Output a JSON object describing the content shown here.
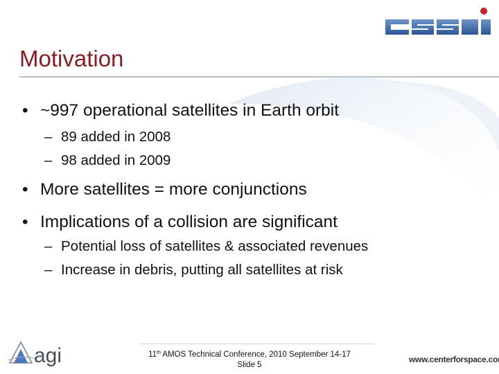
{
  "slide": {
    "title": "Motivation",
    "bullets": [
      {
        "text": "~997 operational satellites in Earth orbit",
        "sub": [
          "89 added in 2008",
          "98 added in 2009"
        ]
      },
      {
        "text": "More satellites = more conjunctions",
        "sub": []
      },
      {
        "text": "Implications of a collision are significant",
        "sub": [
          "Potential loss of satellites & associated revenues",
          "Increase in debris, putting all satellites at risk"
        ]
      }
    ],
    "bullet_symbol": "•",
    "sub_bullet_symbol": "–"
  },
  "footer": {
    "ordinal": "11",
    "ordinal_suffix": "th",
    "conference": " AMOS Technical Conference, 2010 September 14-17",
    "slide_label": "Slide 5"
  },
  "logos": {
    "top_right": "CSSI",
    "bottom_left": "agi",
    "bottom_right": "www.centerforspace.com"
  },
  "colors": {
    "title": "#8a1c24",
    "cssi_blue": "#2f5c9c",
    "cssi_red": "#c8202f",
    "agi_gray": "#4a4f57",
    "agi_blue": "#2a62b0"
  }
}
